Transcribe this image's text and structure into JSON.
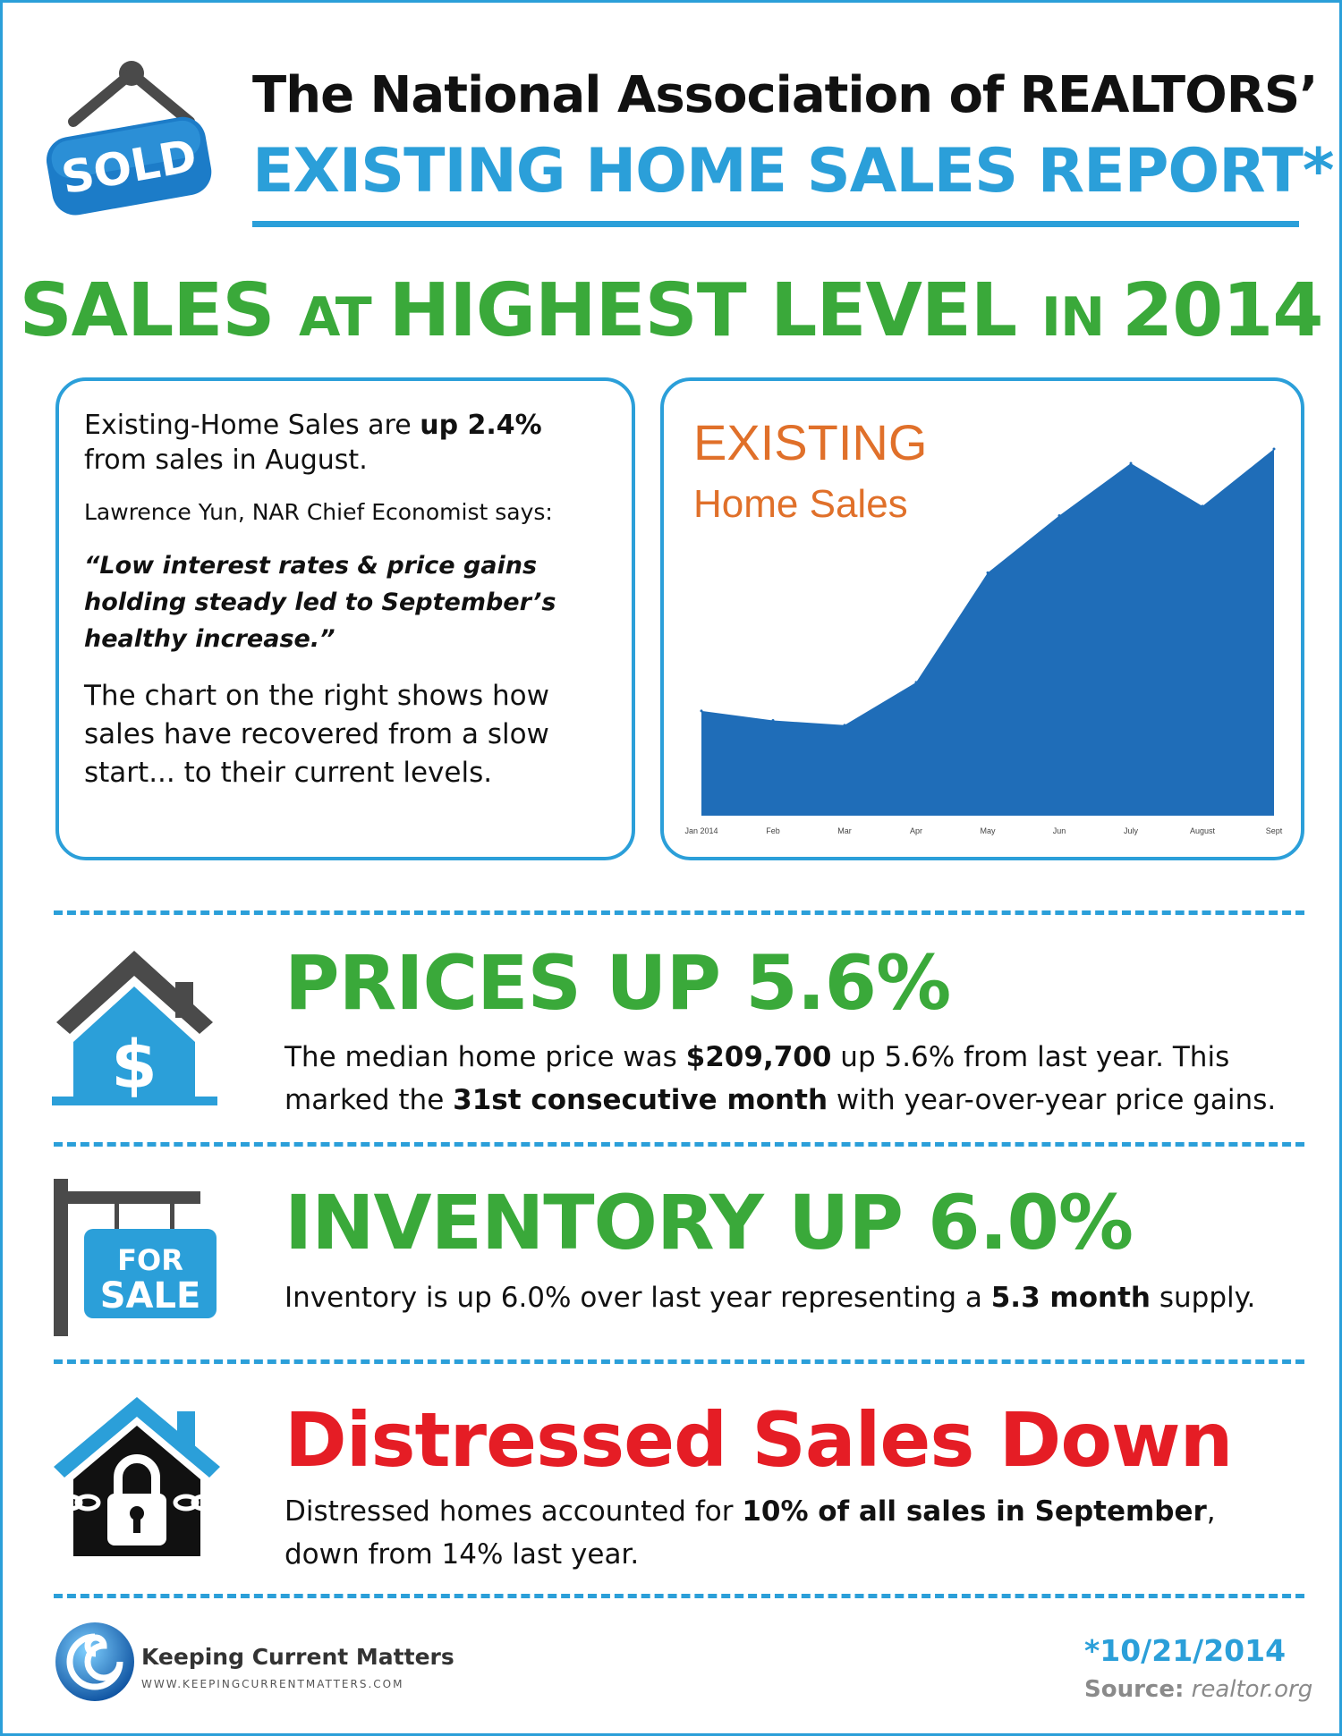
{
  "header": {
    "sign_label": "SOLD",
    "title_line1": "The National Association of REALTORS’",
    "title_line2": "EXISTING HOME SALES REPORT*"
  },
  "headline": {
    "part1": "SALES ",
    "part2": "AT ",
    "part3": "HIGHEST LEVEL ",
    "part4": "IN ",
    "part5": "2014"
  },
  "intro": {
    "p1_pre": "Existing-Home Sales are ",
    "p1_bold": "up 2.4%",
    "p1_post": " from sales in August.",
    "p2": "Lawrence Yun, NAR Chief Economist says:",
    "quote": "“Low interest rates & price gains holding steady led to September’s healthy increase.”",
    "p4": "The chart on the right shows how sales have recovered from a slow start... to their current levels."
  },
  "chart_data": {
    "type": "area",
    "title": "EXISTING",
    "subtitle": "Home Sales",
    "categories": [
      "Jan 2014",
      "Feb",
      "Mar",
      "Apr",
      "May",
      "Jun",
      "July",
      "August",
      "Sept"
    ],
    "values": [
      4.62,
      4.6,
      4.59,
      4.68,
      4.91,
      5.03,
      5.14,
      5.05,
      5.17
    ],
    "ylim": [
      4.4,
      5.2
    ],
    "color": "#1f6db8",
    "title_color": "#e0702a"
  },
  "prices": {
    "title": "PRICES UP 5.6%",
    "line1_pre": "The median home price was ",
    "line1_bold": "$209,700",
    "line1_post": " up 5.6% from last year. This",
    "line2_pre": "marked the ",
    "line2_bold": "31st consecutive month",
    "line2_post": " with year-over-year price gains.",
    "icon_symbol": "$"
  },
  "inventory": {
    "title": "INVENTORY UP 6.0%",
    "line1_pre": "Inventory is up 6.0% over last year representing a ",
    "line1_bold": "5.3 month",
    "line1_post": " supply.",
    "sign_line1": "FOR",
    "sign_line2": "SALE"
  },
  "distressed": {
    "title": "Distressed Sales Down",
    "line1_pre": "Distressed homes accounted for ",
    "line1_bold": "10% of all sales in September",
    "line1_post": ",",
    "line2": "down from 14% last year."
  },
  "footer": {
    "brand": "Keeping Current Matters",
    "url": "WWW.KEEPINGCURRENTMATTERS.COM",
    "date": "*10/21/2014",
    "source_label": "Source:",
    "source_value": " realtor.org"
  },
  "colors": {
    "blue": "#2b9fd9",
    "green": "#3aa93a",
    "red": "#e51d25"
  }
}
